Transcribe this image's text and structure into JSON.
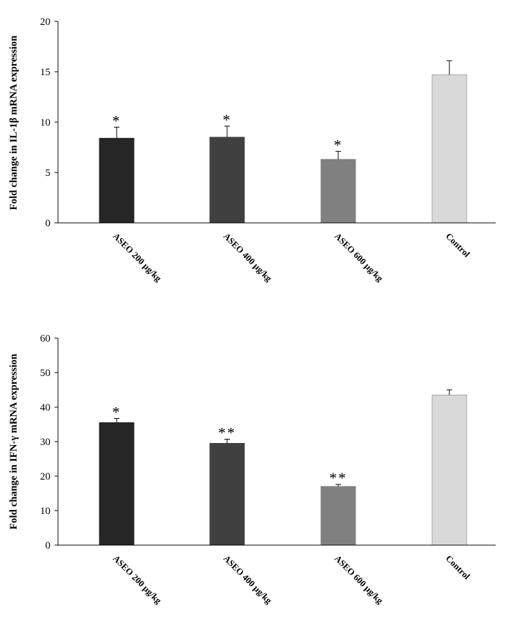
{
  "chart_data": [
    {
      "type": "bar",
      "title": "",
      "ylabel": "Fold change in IL-1β mRNA expression",
      "xlabel": "",
      "ylim": [
        0,
        20
      ],
      "yticks": [
        0,
        5,
        10,
        15,
        20
      ],
      "tick_labels": [
        "0",
        "5",
        "10",
        "15",
        "20"
      ],
      "grid": false,
      "categories": [
        "ASEO 200 µg/kg",
        "ASEO 400 µg/kg",
        "ASEO 600 µg/kg",
        "Control"
      ],
      "values": [
        8.4,
        8.5,
        6.3,
        14.7
      ],
      "errors": [
        1.1,
        1.1,
        0.8,
        1.4
      ],
      "significance": [
        "*",
        "*",
        "*",
        ""
      ],
      "colors": [
        "#262626",
        "#404040",
        "#808080",
        "#d9d9d9"
      ]
    },
    {
      "type": "bar",
      "title": "",
      "ylabel": "Fold change in IFN-γ mRNA expression",
      "xlabel": "",
      "ylim": [
        0,
        60
      ],
      "yticks": [
        0,
        10,
        20,
        30,
        40,
        50,
        60
      ],
      "tick_labels": [
        "0",
        "10",
        "20",
        "30",
        "40",
        "50",
        "60"
      ],
      "grid": false,
      "categories": [
        "ASEO 200 µg/kg",
        "ASEO 400 µg/kg",
        "ASEO 600 µg/kg",
        "Control"
      ],
      "values": [
        35.5,
        29.5,
        17,
        43.5
      ],
      "errors": [
        1.2,
        1.2,
        0.6,
        1.5
      ],
      "significance": [
        "*",
        "**",
        "**",
        ""
      ],
      "colors": [
        "#262626",
        "#404040",
        "#808080",
        "#d9d9d9"
      ]
    }
  ]
}
